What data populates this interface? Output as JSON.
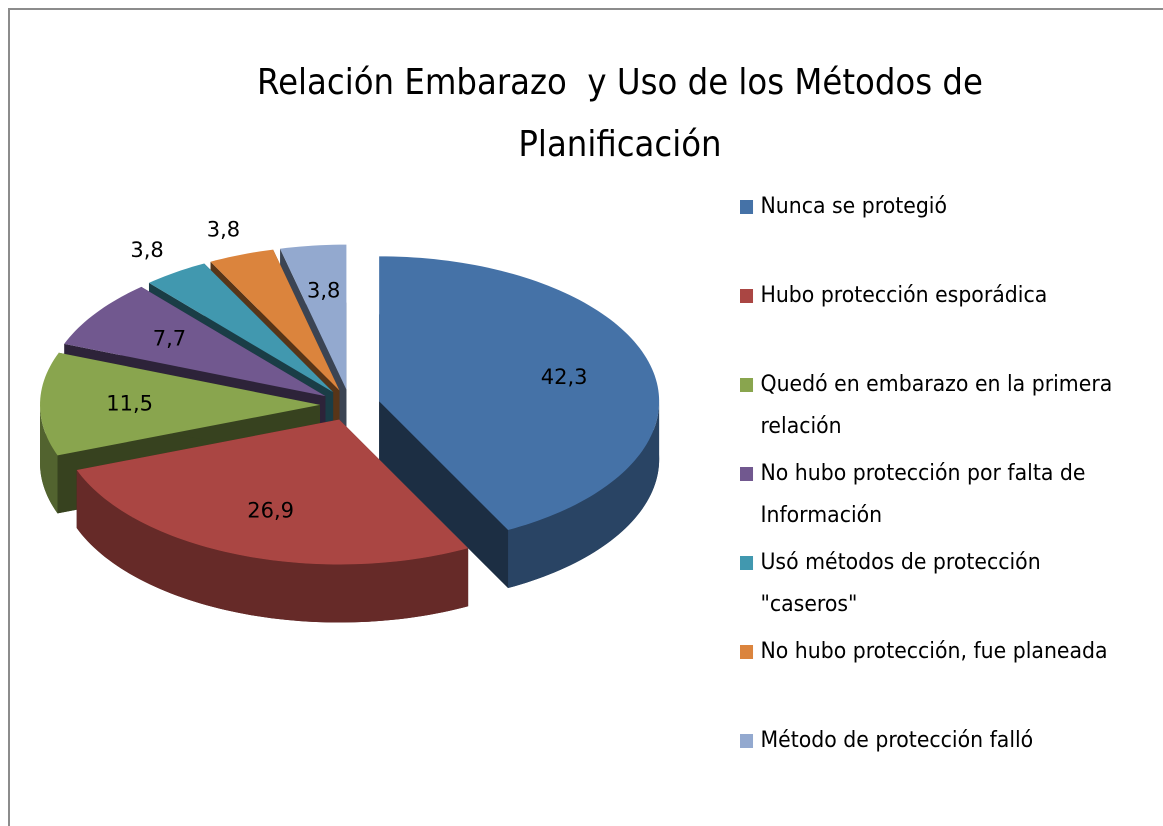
{
  "chart_data": {
    "type": "pie3d",
    "title": "Relación Embarazo  y Uso de los Métodos de Planificación",
    "categories": [
      "Nunca se protegió",
      "Hubo protección esporádica",
      "Quedó en embarazo en la primera relación",
      "No hubo protección por falta de Información",
      "Usó métodos de protección \"caseros\"",
      "No hubo protección, fue planeada",
      "Método de protección falló"
    ],
    "values": [
      42.3,
      26.9,
      11.5,
      7.7,
      3.8,
      3.8,
      3.8
    ],
    "value_labels": [
      "42,3",
      "26,9",
      "11,5",
      "7,7",
      "3,8",
      "3,8",
      "3,8"
    ],
    "colors": [
      "#4572a7",
      "#aa4643",
      "#89a54e",
      "#71588f",
      "#4198af",
      "#db843d",
      "#93a9cf"
    ],
    "legend": "right"
  }
}
